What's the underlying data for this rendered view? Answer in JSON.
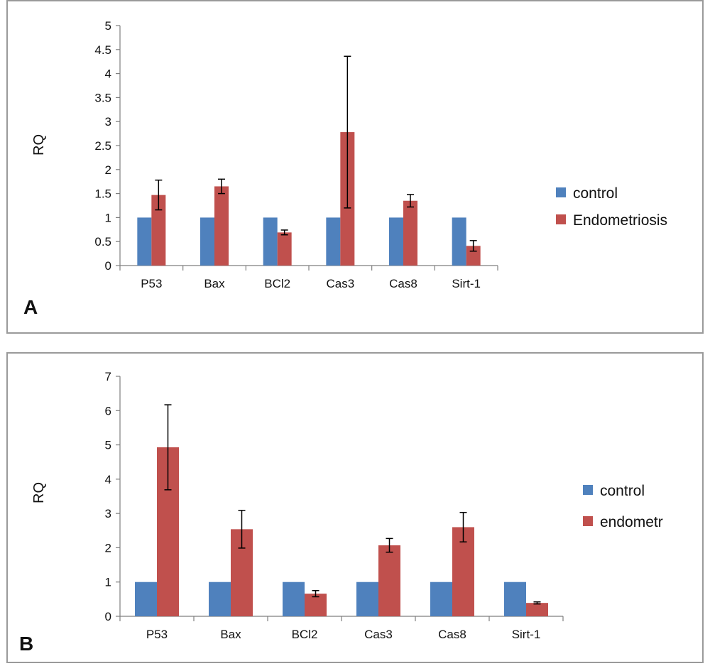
{
  "colors": {
    "control": "#4f81bd",
    "endometriosis": "#c0504d",
    "axis": "#7f7f7f",
    "error": "#000000"
  },
  "chart_data": [
    {
      "type": "bar",
      "panel_label": "A",
      "ylabel": "RQ",
      "ylim": [
        0,
        5
      ],
      "yticks": [
        "0",
        "0.5",
        "1",
        "1.5",
        "2",
        "2.5",
        "3",
        "3.5",
        "4",
        "4.5",
        "5"
      ],
      "categories": [
        "P53",
        "Bax",
        "BCl2",
        "Cas3",
        "Cas8",
        "Sirt-1"
      ],
      "legend_position": "right",
      "series": [
        {
          "name": "control",
          "color": "#4f81bd",
          "values": [
            1,
            1,
            1,
            1,
            1,
            1
          ],
          "errors": [
            0,
            0,
            0,
            0,
            0,
            0
          ]
        },
        {
          "name": "Endometriosis",
          "color": "#c0504d",
          "values": [
            1.47,
            1.65,
            0.69,
            2.78,
            1.35,
            0.41
          ],
          "errors": [
            0.31,
            0.15,
            0.05,
            1.58,
            0.13,
            0.11
          ]
        }
      ]
    },
    {
      "type": "bar",
      "panel_label": "B",
      "ylabel": "RQ",
      "ylim": [
        0,
        7
      ],
      "yticks": [
        "0",
        "1",
        "2",
        "3",
        "4",
        "5",
        "6",
        "7"
      ],
      "categories": [
        "P53",
        "Bax",
        "BCl2",
        "Cas3",
        "Cas8",
        "Sirt-1"
      ],
      "legend_position": "right",
      "series": [
        {
          "name": "control",
          "color": "#4f81bd",
          "values": [
            1,
            1,
            1,
            1,
            1,
            1
          ],
          "errors": [
            0,
            0,
            0,
            0,
            0,
            0
          ]
        },
        {
          "name": "endometr",
          "color": "#c0504d",
          "values": [
            4.93,
            2.54,
            0.66,
            2.07,
            2.6,
            0.39
          ],
          "errors": [
            1.24,
            0.55,
            0.09,
            0.2,
            0.43,
            0.03
          ]
        }
      ]
    }
  ]
}
